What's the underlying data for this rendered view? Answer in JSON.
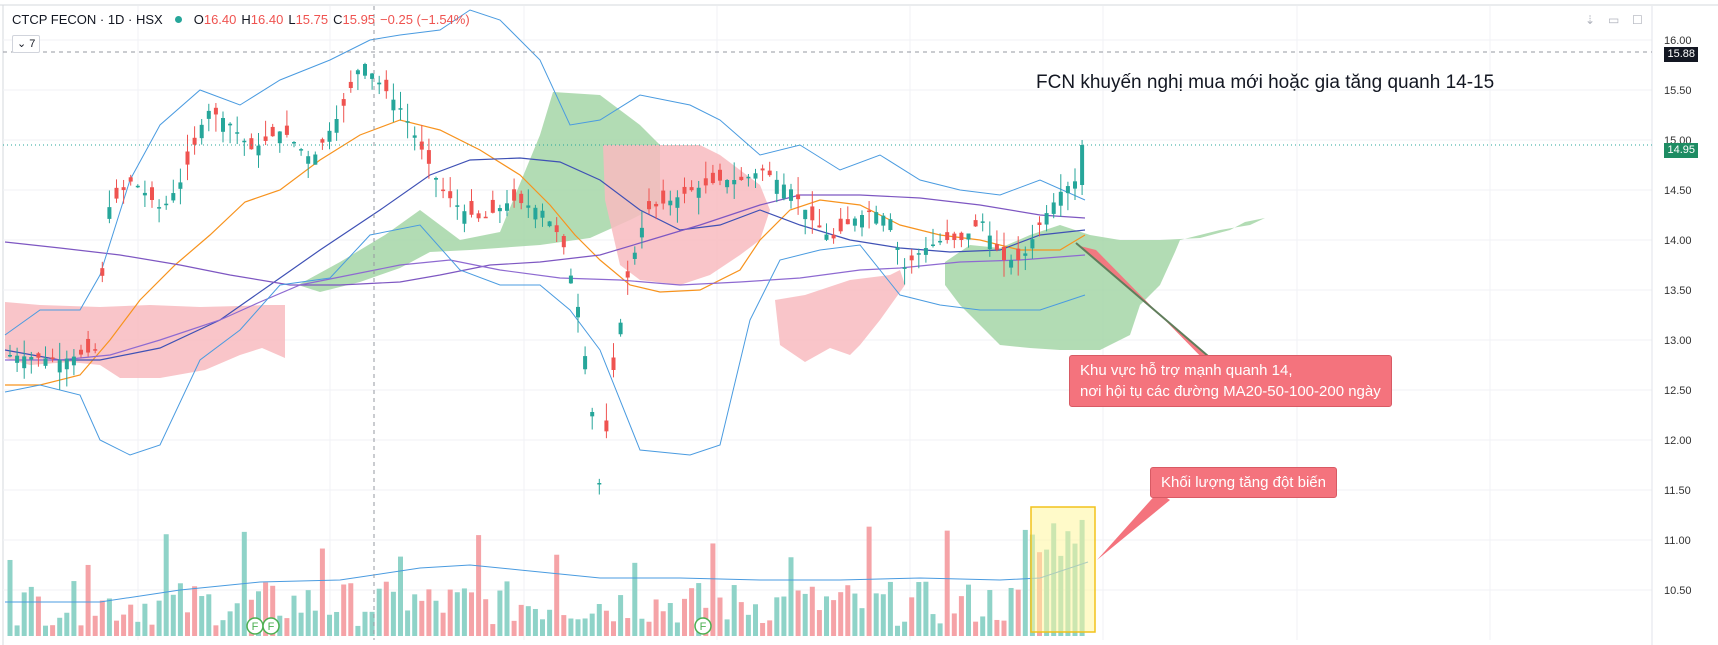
{
  "header": {
    "symbol": "CTCP FECON · 1D · HSX",
    "o_key": "O",
    "o_val": "16.40",
    "h_key": "H",
    "h_val": "16.40",
    "l_key": "L",
    "l_val": "15.75",
    "c_key": "C",
    "c_val": "15.95",
    "change": "−0.25 (−1.54%)",
    "indicator_toggle": "⌄ 7"
  },
  "price_tags": {
    "crosshair_price": "15.88",
    "last_price": "14.95"
  },
  "annotations": {
    "title": "FCN khuyến nghị mua mới hoặc gia tăng quanh 14-15",
    "support_line1": "Khu vực hỗ trợ mạnh quanh 14,",
    "support_line2": " nơi hội tụ các đường MA20-50-100-200 ngày",
    "volume_note": "Khối lượng tăng đột biến"
  },
  "chart_data": {
    "type": "candlestick",
    "yaxis_ticks": [
      "16.00",
      "15.50",
      "15.00",
      "14.50",
      "14.00",
      "13.50",
      "13.00",
      "12.50",
      "12.00",
      "11.50",
      "11.00",
      "10.50"
    ],
    "ylim": [
      10.5,
      16.0
    ],
    "event_markers": [
      "F",
      "F",
      "F"
    ],
    "colors": {
      "up": "#26a69a",
      "down": "#ef5350",
      "volume_up": "#8fd3c8",
      "volume_down": "#f5a3a7",
      "cloud_bull": "#a5d6a7",
      "cloud_bear": "#f8bbc0",
      "ma_orange": "#f7931e",
      "ma_blue": "#3f51b5",
      "ma_purple": "#7e57c2",
      "bollinger": "#4a9be0"
    }
  }
}
